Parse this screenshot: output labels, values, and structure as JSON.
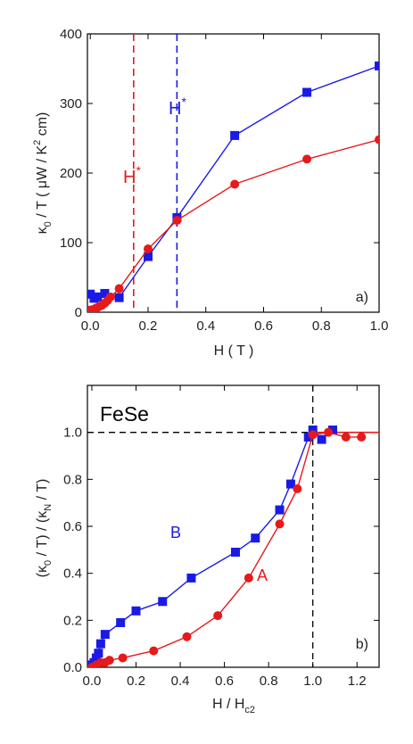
{
  "chart_data": [
    {
      "type": "line",
      "panel_label": "a)",
      "xlabel": "H ( T )",
      "ylabel_parts": {
        "kappa": "κ",
        "sub": "0",
        "rest": " / T  ( μW / K",
        "sup": "2",
        "tail": " cm)"
      },
      "xlim": [
        -0.01,
        1.0
      ],
      "ylim": [
        0,
        400
      ],
      "x_ticks": [
        0.0,
        0.2,
        0.4,
        0.6,
        0.8,
        1.0
      ],
      "x_tick_labels": [
        "0.0",
        "0.2",
        "0.4",
        "0.6",
        "0.8",
        "1.0"
      ],
      "y_ticks": [
        0,
        100,
        200,
        300,
        400
      ],
      "y_tick_labels": [
        "0",
        "100",
        "200",
        "300",
        "400"
      ],
      "series": [
        {
          "color": "#1a1ae6",
          "marker": "square",
          "x": [
            0.0,
            0.013,
            0.025,
            0.05,
            0.1,
            0.2,
            0.3,
            0.5,
            0.75,
            1.0
          ],
          "y": [
            26,
            20,
            22,
            27,
            21,
            80,
            136,
            254,
            316,
            354
          ]
        },
        {
          "color": "#e61a1a",
          "marker": "circle",
          "x": [
            0.0,
            0.01,
            0.02,
            0.03,
            0.04,
            0.05,
            0.06,
            0.07,
            0.1,
            0.2,
            0.3,
            0.5,
            0.75,
            1.0
          ],
          "y": [
            3,
            4,
            6,
            8,
            10,
            13,
            17,
            22,
            34,
            91,
            132,
            184,
            220,
            248
          ]
        }
      ],
      "vlines": [
        {
          "x": 0.15,
          "color": "#e61a1a",
          "label_main": "H",
          "label_sup": "*"
        },
        {
          "x": 0.3,
          "color": "#1a1ae6",
          "label_main": "H",
          "label_sup": "*"
        }
      ]
    },
    {
      "type": "line",
      "panel_label": "b)",
      "title": "FeSe",
      "xlabel_parts": {
        "main": "H / H",
        "sub": "c2"
      },
      "ylabel_parts": {
        "p1": "(κ",
        "sub1": "0",
        "p2": " / T)  /  (κ",
        "sub2": "N",
        "p3": " / T)"
      },
      "xlim": [
        -0.02,
        1.3
      ],
      "ylim": [
        0,
        1.2
      ],
      "x_ticks": [
        0.0,
        0.2,
        0.4,
        0.6,
        0.8,
        1.0,
        1.2
      ],
      "x_tick_labels": [
        "0.0",
        "0.2",
        "0.4",
        "0.6",
        "0.8",
        "1.0",
        "1.2"
      ],
      "y_ticks": [
        0.0,
        0.2,
        0.4,
        0.6,
        0.8,
        1.0
      ],
      "y_tick_labels": [
        "0.0",
        "0.2",
        "0.4",
        "0.6",
        "0.8",
        "1.0"
      ],
      "hline": 1.0,
      "vline": 1.0,
      "series": [
        {
          "name": "B",
          "color": "#1a1ae6",
          "marker": "square",
          "x": [
            0.0,
            0.01,
            0.02,
            0.03,
            0.04,
            0.06,
            0.13,
            0.2,
            0.32,
            0.45,
            0.65,
            0.74,
            0.85,
            0.9,
            0.98,
            1.0,
            1.04,
            1.09
          ],
          "y": [
            0.01,
            0.02,
            0.04,
            0.06,
            0.1,
            0.14,
            0.19,
            0.24,
            0.28,
            0.38,
            0.49,
            0.55,
            0.67,
            0.78,
            0.98,
            1.01,
            0.97,
            1.01
          ]
        },
        {
          "name": "A",
          "color": "#e61a1a",
          "marker": "circle",
          "x": [
            0.0,
            0.02,
            0.04,
            0.06,
            0.08,
            0.14,
            0.28,
            0.43,
            0.57,
            0.71,
            0.85,
            0.93,
            1.0,
            1.07,
            1.15,
            1.22
          ],
          "y": [
            0.0,
            0.01,
            0.02,
            0.02,
            0.03,
            0.04,
            0.07,
            0.13,
            0.22,
            0.38,
            0.61,
            0.76,
            0.99,
            1.0,
            0.98,
            0.98
          ]
        }
      ]
    }
  ]
}
